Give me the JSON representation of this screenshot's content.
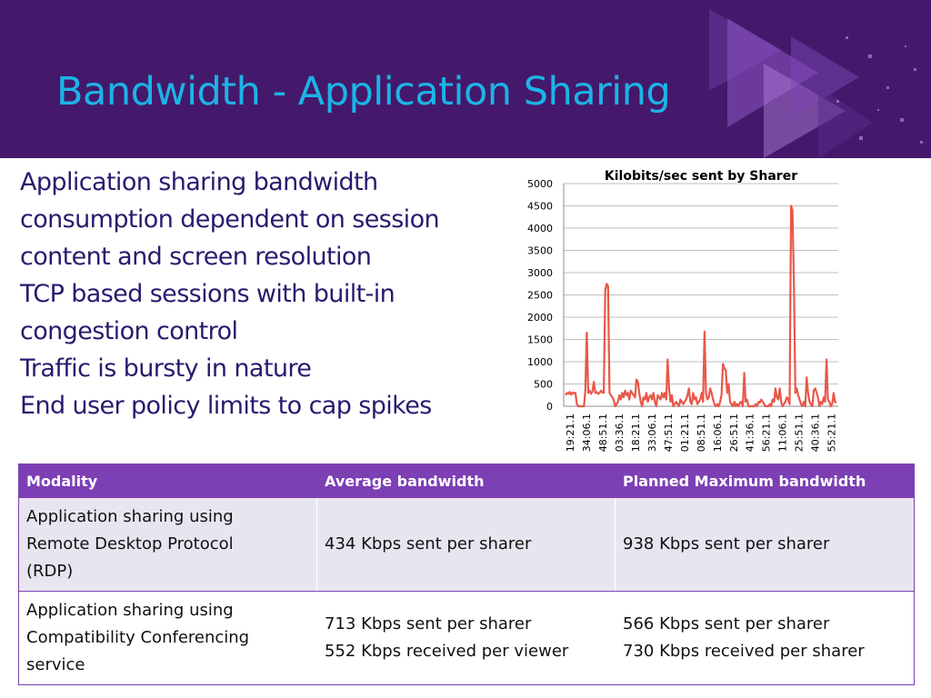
{
  "slide": {
    "title": "Bandwidth - Application Sharing",
    "colors": {
      "header_bg": "#44196b",
      "title": "#1cb4e6",
      "body_text": "#2a1a6e",
      "accent": "#7d3fb4",
      "series": "#e8584a"
    }
  },
  "bullets": [
    "Application sharing bandwidth consumption dependent on session content and screen resolution",
    "TCP based sessions with built-in congestion control",
    "Traffic is bursty in nature",
    "End user policy limits to cap spikes"
  ],
  "chart_data": {
    "type": "line",
    "title": "Kilobits/sec sent by Sharer",
    "xlabel": "",
    "ylabel": "",
    "ylim": [
      0,
      5000
    ],
    "yticks": [
      0,
      500,
      1000,
      1500,
      2000,
      2500,
      3000,
      3500,
      4000,
      4500,
      5000
    ],
    "xtick_labels": [
      "19:21.1",
      "34:06.1",
      "48:51.1",
      "03:36.1",
      "18:21.1",
      "33:06.1",
      "47:51.1",
      "01:21.1",
      "08:51.1",
      "16:06.1",
      "26:51.1",
      "41:36.1",
      "56:21.1",
      "11:06.1",
      "25:51.1",
      "40:36.1",
      "55:21.1"
    ],
    "grid": "horizontal",
    "legend": "none",
    "series": [
      {
        "values": [
          250,
          300,
          280,
          320,
          260,
          310,
          290,
          300,
          50,
          0,
          0,
          0,
          0,
          0,
          350,
          1650,
          300,
          350,
          280,
          330,
          550,
          300,
          320,
          280,
          300,
          350,
          310,
          300,
          2600,
          2750,
          2700,
          300,
          250,
          200,
          150,
          0,
          50,
          100,
          250,
          150,
          300,
          200,
          350,
          250,
          300,
          150,
          350,
          300,
          250,
          200,
          600,
          550,
          300,
          100,
          0,
          200,
          150,
          300,
          100,
          200,
          250,
          150,
          300,
          100,
          0,
          250,
          200,
          150,
          300,
          200,
          300,
          150,
          1050,
          400,
          100,
          250,
          0,
          50,
          100,
          50,
          0,
          150,
          100,
          50,
          100,
          150,
          250,
          400,
          100,
          50,
          300,
          150,
          200,
          50,
          100,
          150,
          300,
          100,
          1680,
          300,
          150,
          200,
          400,
          300,
          150,
          50,
          0,
          50,
          0,
          100,
          250,
          950,
          850,
          800,
          300,
          500,
          100,
          50,
          0,
          100,
          0,
          50,
          0,
          80,
          100,
          0,
          750,
          100,
          150,
          0,
          0,
          0,
          0,
          0,
          50,
          0,
          100,
          80,
          150,
          100,
          50,
          0,
          0,
          0,
          50,
          0,
          150,
          100,
          400,
          200,
          150,
          400,
          100,
          0,
          50,
          100,
          200,
          150,
          50,
          4500,
          4400,
          2800,
          300,
          400,
          250,
          150,
          50,
          0,
          100,
          0,
          650,
          300,
          100,
          50,
          0,
          350,
          400,
          300,
          200,
          0,
          100,
          50,
          200,
          100,
          1050,
          150,
          100,
          0,
          50,
          300,
          100,
          80
        ]
      }
    ]
  },
  "table": {
    "headers": [
      "Modality",
      "Average bandwidth",
      "Planned Maximum bandwidth"
    ],
    "rows": [
      {
        "modality": [
          "Application sharing using",
          "Remote Desktop Protocol",
          "(RDP)"
        ],
        "average": [
          "434 Kbps sent per sharer"
        ],
        "planned_max": [
          "938 Kbps sent per sharer"
        ]
      },
      {
        "modality": [
          "Application sharing using",
          "Compatibility Conferencing",
          "service"
        ],
        "average": [
          "713 Kbps sent per sharer",
          "552 Kbps received per viewer"
        ],
        "planned_max": [
          "566 Kbps sent per sharer",
          "730 Kbps received per sharer"
        ]
      }
    ]
  }
}
